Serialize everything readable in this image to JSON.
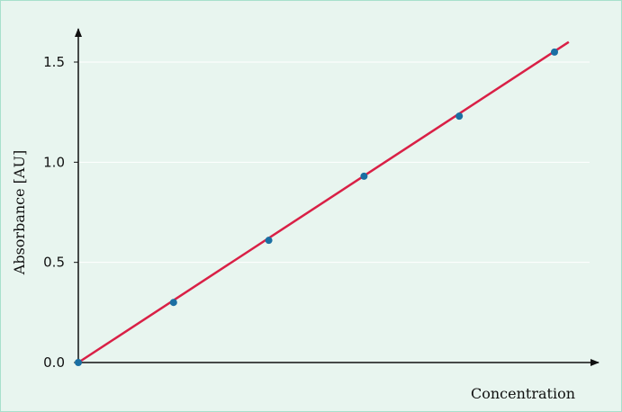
{
  "chart_data": {
    "type": "line",
    "xlabel": "Concentration",
    "ylabel": "Absorbance [AU]",
    "ylim": [
      0,
      1.6
    ],
    "yticks": [
      "0.0",
      "0.5",
      "1.0",
      "1.5"
    ],
    "x_tick_labels_shown": false,
    "grid": true,
    "series": [
      {
        "type": "scatter",
        "x": [
          0,
          1,
          2,
          3,
          4,
          5
        ],
        "y": [
          0.0,
          0.3,
          0.61,
          0.93,
          1.23,
          1.55
        ]
      },
      {
        "type": "line",
        "x": [
          0,
          5.15
        ],
        "y": [
          0.0,
          1.6
        ]
      }
    ]
  },
  "colors": {
    "background": "#e8f5ef",
    "border": "#a8e0cc",
    "fit_line": "#d92046",
    "points": "#1a6fa3",
    "grid": "#ffffff",
    "axis": "#111111"
  }
}
